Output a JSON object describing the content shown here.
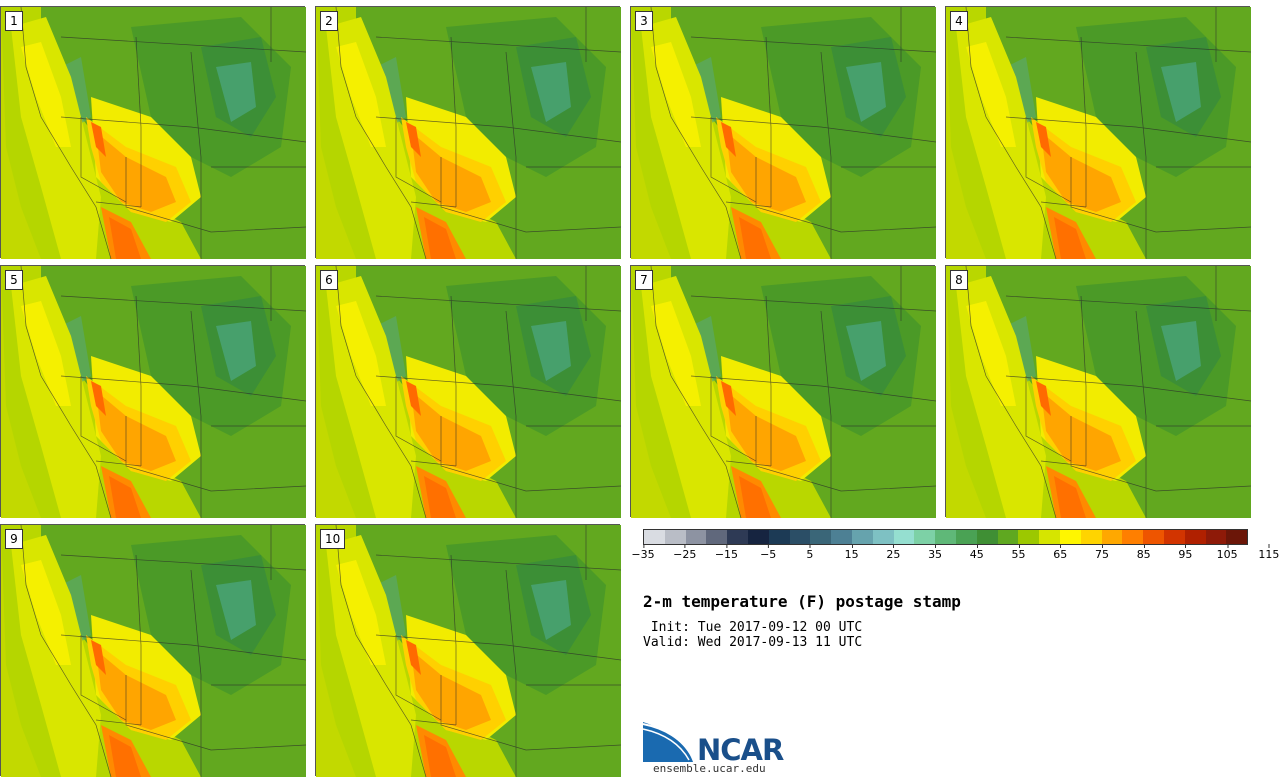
{
  "panels": [
    "1",
    "2",
    "3",
    "4",
    "5",
    "6",
    "7",
    "8",
    "9",
    "10"
  ],
  "colorbar": {
    "colors": [
      "#d9dce2",
      "#b9bdc6",
      "#8d93a2",
      "#60687c",
      "#2e3a55",
      "#162440",
      "#1c3a55",
      "#2b4e66",
      "#3a6678",
      "#4d8094",
      "#66a3ad",
      "#7ec1c3",
      "#95dfd0",
      "#7dd1a6",
      "#5fb878",
      "#4aa254",
      "#3f8f34",
      "#5fa820",
      "#9cc800",
      "#d6e500",
      "#fff600",
      "#ffd400",
      "#ffa800",
      "#ff7f00",
      "#ee5500",
      "#d23400",
      "#b02000",
      "#8e1a08",
      "#6b1608"
    ],
    "tick_labels": [
      "−35",
      "−25",
      "−15",
      "−5",
      "5",
      "15",
      "25",
      "35",
      "45",
      "55",
      "65",
      "75",
      "85",
      "95",
      "105",
      "115"
    ]
  },
  "title": "2-m temperature (F) postage stamp",
  "init_line": " Init: Tue 2017-09-12 00 UTC",
  "valid_line": "Valid: Wed 2017-09-13 11 UTC",
  "logo": {
    "text": "NCAR",
    "url": "ensemble.ucar.edu"
  }
}
